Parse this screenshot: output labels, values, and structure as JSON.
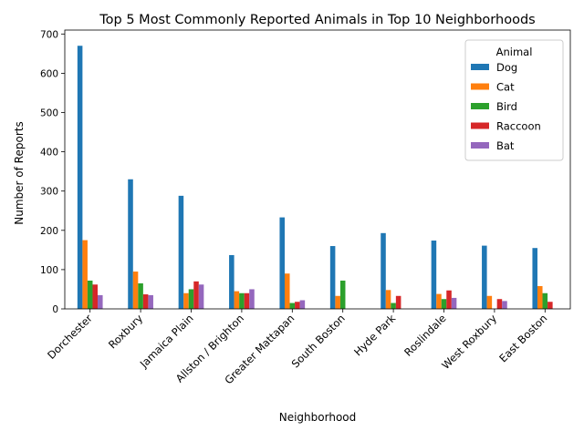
{
  "chart_data": {
    "type": "bar",
    "title": "Top 5 Most Commonly Reported Animals in Top 10 Neighborhoods",
    "xlabel": "Neighborhood",
    "ylabel": "Number of Reports",
    "ylim": [
      0,
      710
    ],
    "yticks": [
      0,
      100,
      200,
      300,
      400,
      500,
      600,
      700
    ],
    "grid": false,
    "legend": {
      "title": "Animal",
      "placement": "top-right"
    },
    "categories": [
      "Dorchester",
      "Roxbury",
      "Jamaica Plain",
      "Allston / Brighton",
      "Greater Mattapan",
      "South Boston",
      "Hyde Park",
      "Roslindale",
      "West Roxbury",
      "East Boston"
    ],
    "series": [
      {
        "name": "Dog",
        "color": "#1f77b4",
        "values": [
          670,
          330,
          288,
          137,
          233,
          160,
          193,
          174,
          161,
          155
        ]
      },
      {
        "name": "Cat",
        "color": "#ff7f0e",
        "values": [
          175,
          95,
          40,
          45,
          90,
          33,
          48,
          38,
          33,
          58
        ]
      },
      {
        "name": "Bird",
        "color": "#2ca02c",
        "values": [
          72,
          65,
          50,
          40,
          15,
          72,
          15,
          25,
          0,
          40
        ]
      },
      {
        "name": "Raccoon",
        "color": "#d62728",
        "values": [
          62,
          37,
          70,
          40,
          18,
          0,
          33,
          47,
          25,
          18
        ]
      },
      {
        "name": "Bat",
        "color": "#9467bd",
        "values": [
          35,
          35,
          62,
          50,
          22,
          0,
          0,
          28,
          20,
          0
        ]
      }
    ]
  }
}
